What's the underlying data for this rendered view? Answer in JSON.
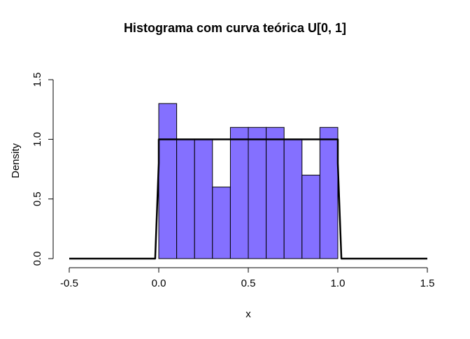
{
  "chart_data": {
    "type": "bar",
    "title": "Histograma com curva teórica U[0, 1]",
    "xlabel": "x",
    "ylabel": "Density",
    "xlim": [
      -0.5,
      1.5
    ],
    "ylim": [
      0,
      1.5
    ],
    "x_ticks": [
      "-0.5",
      "0.0",
      "0.5",
      "1.0",
      "1.5"
    ],
    "x_tick_values": [
      -0.5,
      0.0,
      0.5,
      1.0,
      1.5
    ],
    "y_ticks": [
      "0.0",
      "0.5",
      "1.0",
      "1.5"
    ],
    "y_tick_values": [
      0.0,
      0.5,
      1.0,
      1.5
    ],
    "bin_edges": [
      0.0,
      0.1,
      0.2,
      0.3,
      0.4,
      0.5,
      0.6,
      0.7,
      0.8,
      0.9,
      1.0
    ],
    "densities": [
      1.3,
      1.0,
      1.0,
      0.6,
      1.1,
      1.1,
      1.1,
      1.0,
      0.7,
      1.1
    ],
    "bar_color": "#8470ff",
    "bar_edge_color": "#000000",
    "curve": {
      "name": "U[0, 1]",
      "x": [
        -0.5,
        -0.02,
        0.0,
        0.0,
        1.0,
        1.0,
        1.02,
        1.5
      ],
      "y": [
        0.0,
        0.0,
        0.8,
        1.0,
        1.0,
        0.8,
        0.0,
        0.0
      ],
      "color": "#000000"
    },
    "grid": false,
    "legend": "none"
  }
}
